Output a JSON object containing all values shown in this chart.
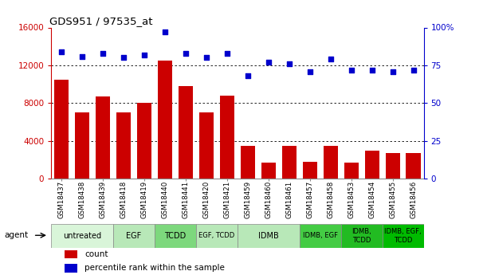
{
  "title": "GDS951 / 97535_at",
  "samples": [
    "GSM18437",
    "GSM18438",
    "GSM18439",
    "GSM18418",
    "GSM18419",
    "GSM18440",
    "GSM18441",
    "GSM18420",
    "GSM18421",
    "GSM18459",
    "GSM18460",
    "GSM18461",
    "GSM18457",
    "GSM18458",
    "GSM18453",
    "GSM18454",
    "GSM18455",
    "GSM18456"
  ],
  "counts": [
    10500,
    7000,
    8700,
    7000,
    8000,
    12500,
    9800,
    7000,
    8800,
    3500,
    1700,
    3500,
    1800,
    3500,
    1700,
    3000,
    2700,
    2700
  ],
  "percentiles": [
    84,
    81,
    83,
    80,
    82,
    97,
    83,
    80,
    83,
    68,
    77,
    76,
    71,
    79,
    72,
    72,
    71,
    72
  ],
  "bar_color": "#cc0000",
  "dot_color": "#0000cc",
  "ylim_left": [
    0,
    16000
  ],
  "ylim_right": [
    0,
    100
  ],
  "yticks_left": [
    0,
    4000,
    8000,
    12000,
    16000
  ],
  "yticks_right": [
    0,
    25,
    50,
    75,
    100
  ],
  "yticklabels_right": [
    "0",
    "25",
    "50",
    "75",
    "100%"
  ],
  "groups": [
    {
      "label": "untreated",
      "start": 0,
      "end": 3,
      "color": "#d9f5d9"
    },
    {
      "label": "EGF",
      "start": 3,
      "end": 5,
      "color": "#b8e8b8"
    },
    {
      "label": "TCDD",
      "start": 5,
      "end": 7,
      "color": "#7dd87d"
    },
    {
      "label": "EGF, TCDD",
      "start": 7,
      "end": 9,
      "color": "#b8e8b8"
    },
    {
      "label": "IDMB",
      "start": 9,
      "end": 12,
      "color": "#b8e8b8"
    },
    {
      "label": "IDMB, EGF",
      "start": 12,
      "end": 14,
      "color": "#44cc44"
    },
    {
      "label": "IDMB,\nTCDD",
      "start": 14,
      "end": 16,
      "color": "#22bb22"
    },
    {
      "label": "IDMB, EGF,\nTCDD",
      "start": 16,
      "end": 18,
      "color": "#00bb00"
    }
  ],
  "legend_count_color": "#cc0000",
  "legend_pct_color": "#0000cc",
  "tick_color_left": "#cc0000",
  "tick_color_right": "#0000cc"
}
